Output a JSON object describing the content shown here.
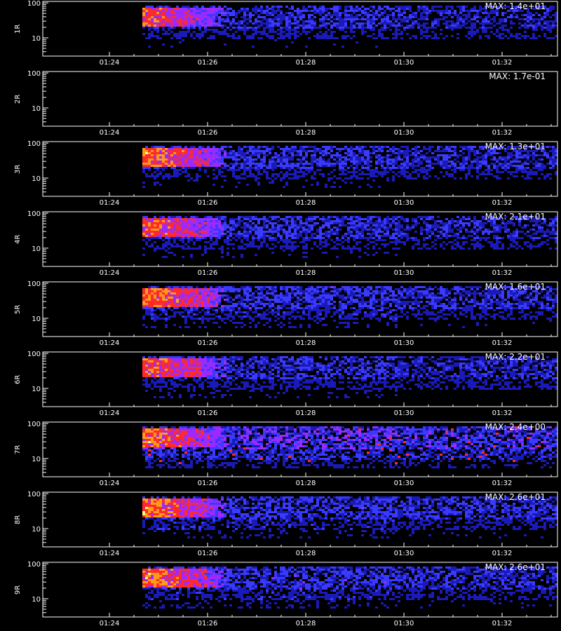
{
  "chart_data": {
    "type": "heatmap",
    "x_ticks": [
      "01:24",
      "01:26",
      "01:28",
      "01:30",
      "01:32"
    ],
    "y_ticks": [
      {
        "value": 100,
        "label": "100"
      },
      {
        "value": 10,
        "label": "10"
      }
    ],
    "yscale": "log",
    "ylim": [
      3,
      110
    ],
    "colormap": [
      "#000000",
      "#1a1ab8",
      "#3a3aff",
      "#9a2aff",
      "#ff2a2a",
      "#ff9a1a",
      "#ffff80"
    ],
    "panels": [
      {
        "ylabel": "1R",
        "max_label": "MAX: 1.4e+01",
        "burst_strength": 0.85,
        "background": 0.5
      },
      {
        "ylabel": "2R",
        "max_label": "MAX: 1.7e-01",
        "burst_strength": 0.0,
        "background": 0.0
      },
      {
        "ylabel": "3R",
        "max_label": "MAX: 1.3e+01",
        "burst_strength": 0.95,
        "background": 0.55
      },
      {
        "ylabel": "4R",
        "max_label": "MAX: 2.1e+01",
        "burst_strength": 0.9,
        "background": 0.55
      },
      {
        "ylabel": "5R",
        "max_label": "MAX: 1.6e+01",
        "burst_strength": 0.95,
        "background": 0.6
      },
      {
        "ylabel": "6R",
        "max_label": "MAX: 2.2e+01",
        "burst_strength": 0.9,
        "background": 0.55
      },
      {
        "ylabel": "7R",
        "max_label": "MAX: 2.4e+00",
        "burst_strength": 0.95,
        "background": 0.8
      },
      {
        "ylabel": "8R",
        "max_label": "MAX: 2.6e+01",
        "burst_strength": 0.95,
        "background": 0.6
      },
      {
        "ylabel": "9R",
        "max_label": "MAX: 2.6e+01",
        "burst_strength": 0.95,
        "background": 0.6
      }
    ]
  }
}
